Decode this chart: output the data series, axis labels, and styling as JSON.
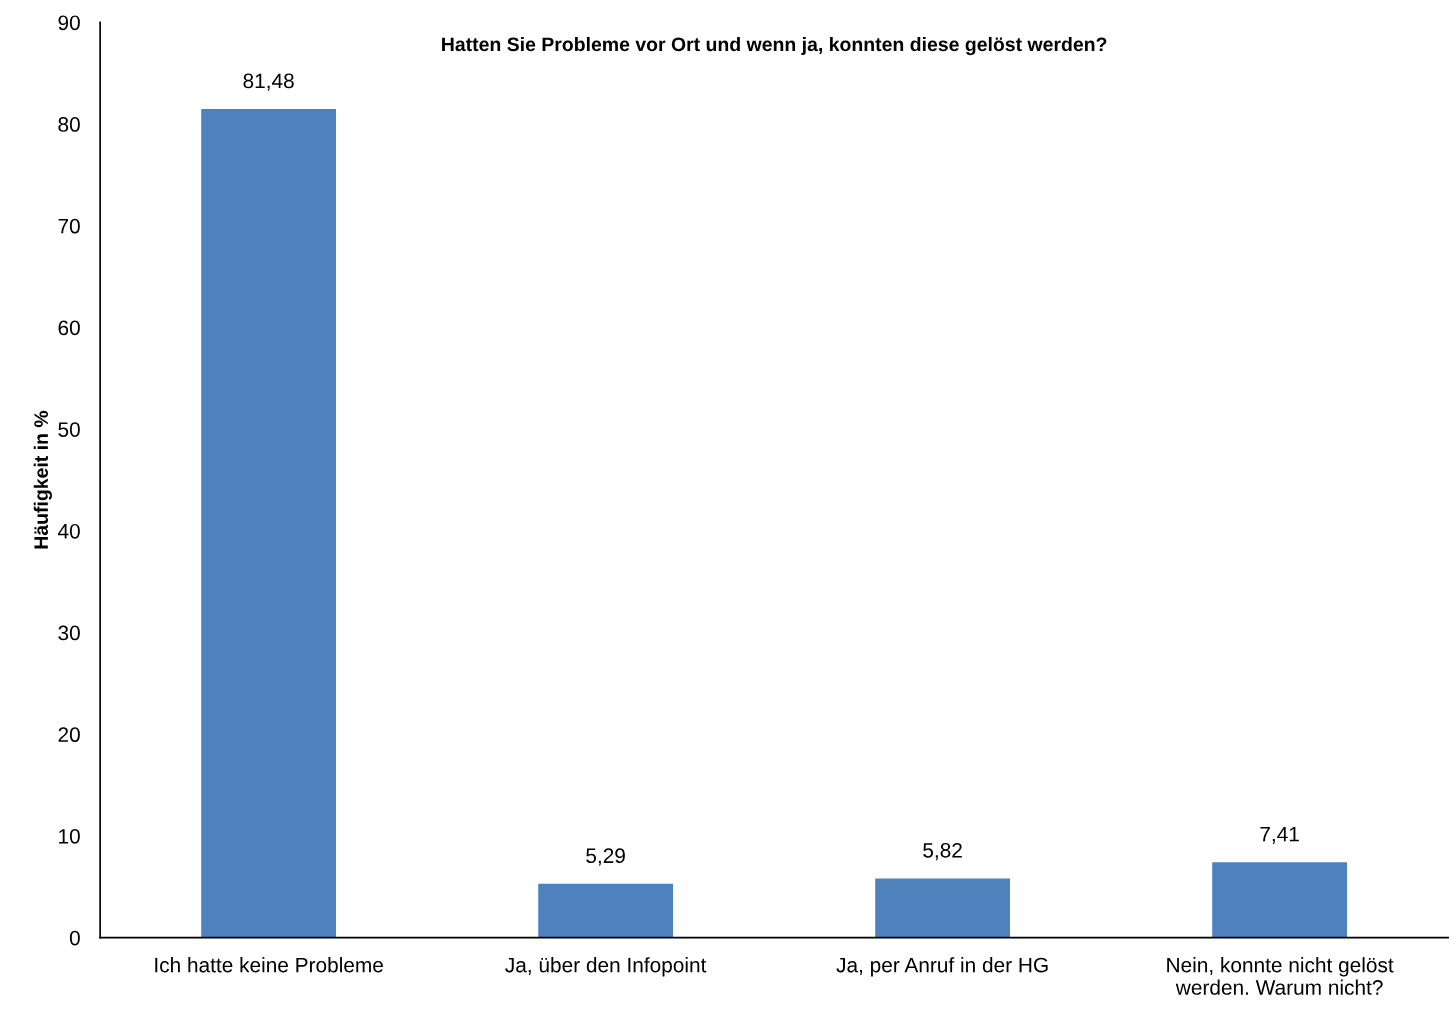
{
  "chart_data": {
    "type": "bar",
    "title": "Hatten Sie Probleme vor Ort und wenn ja, konnten diese gelöst werden?",
    "ylabel": "Häufigkeit in %",
    "categories": [
      "Ich hatte keine Probleme",
      "Ja, über den Infopoint",
      "Ja, per Anruf in der HG",
      "Nein, konnte nicht gelöst\nwerden. Warum nicht?"
    ],
    "values": [
      81.48,
      5.29,
      5.82,
      7.41
    ],
    "value_labels": [
      "81,48",
      "5,29",
      "5,82",
      "7,41"
    ],
    "color": "#4f81bd",
    "ylim": [
      0,
      90
    ],
    "yticks": [
      0,
      10,
      20,
      30,
      40,
      50,
      60,
      70,
      80,
      90
    ],
    "grid": false,
    "legend": false
  }
}
